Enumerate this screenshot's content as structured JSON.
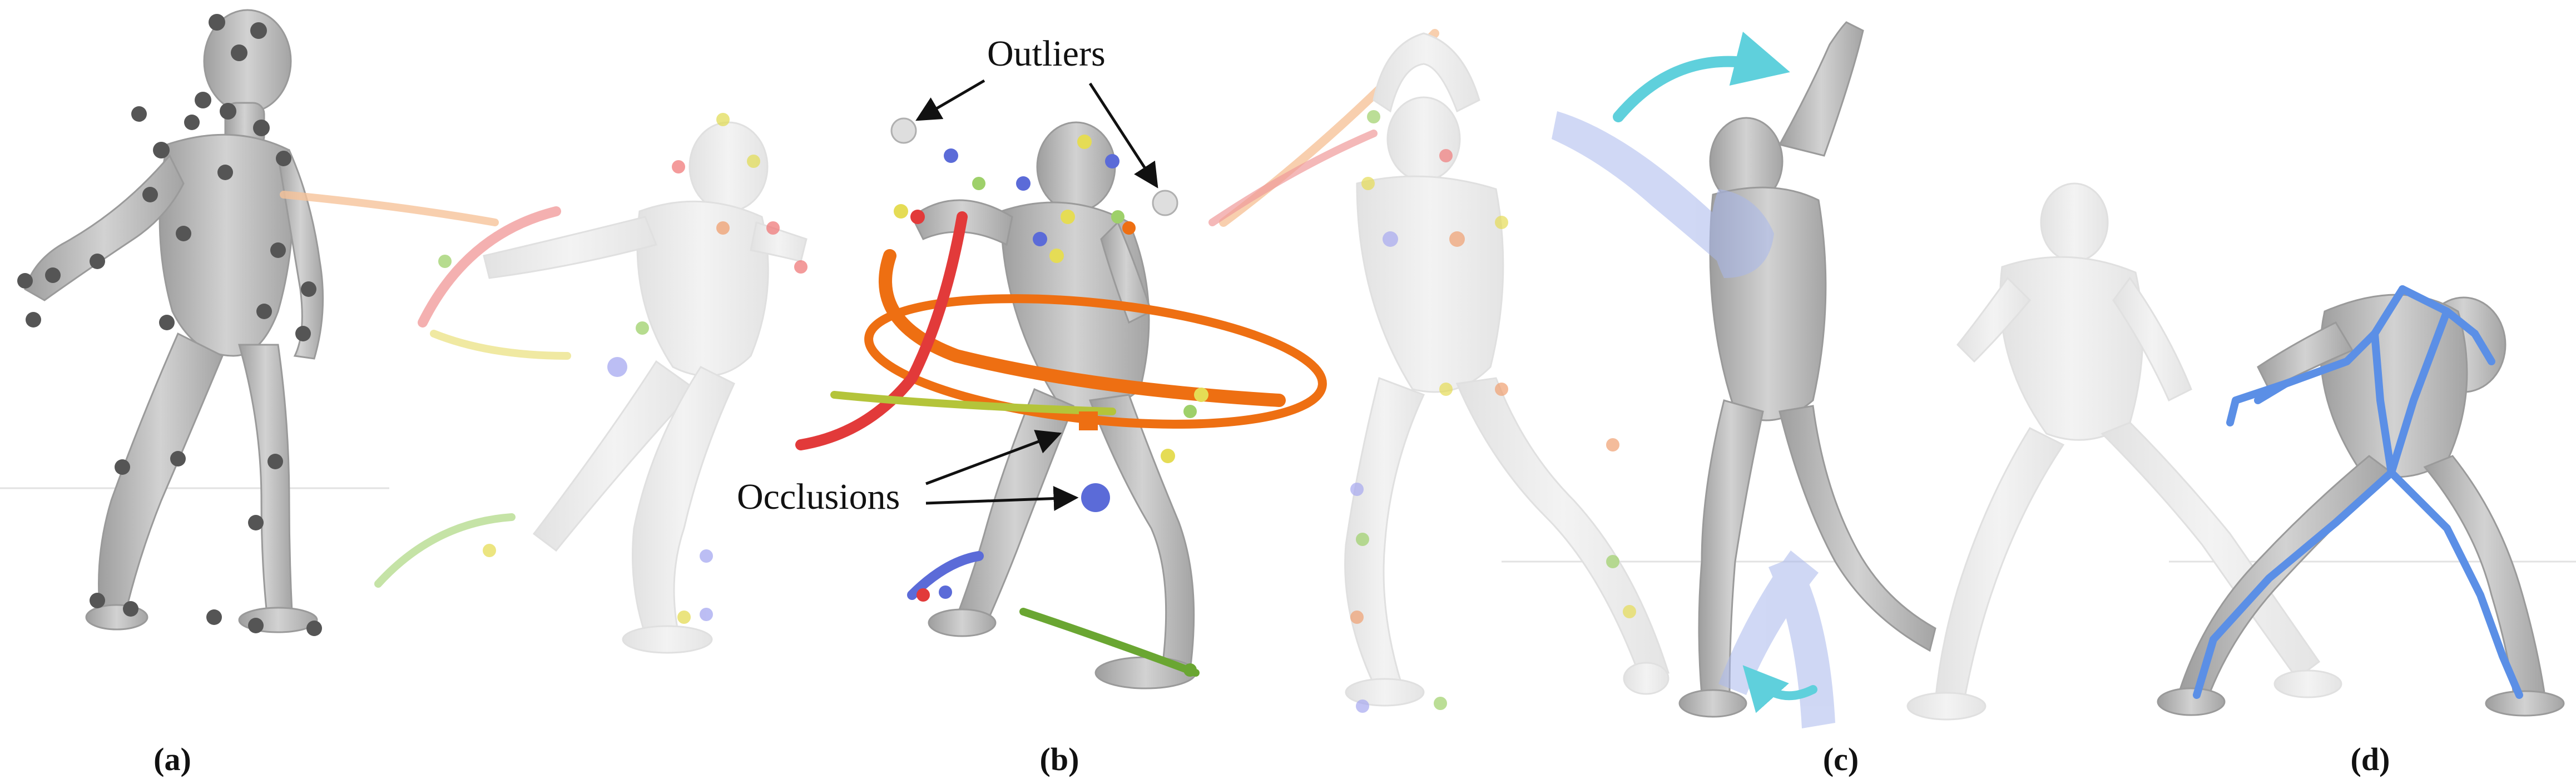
{
  "panels": [
    {
      "caption": "(a)"
    },
    {
      "caption": "(b)"
    },
    {
      "caption": "(c)"
    },
    {
      "caption": "(d)"
    }
  ],
  "annotations": {
    "outliers": "Outliers",
    "occlusions": "Occlusions"
  },
  "colors": {
    "body": "#bdbdbd",
    "body_light": "#ebebeb",
    "marker_dark": "#4f4f4f",
    "trail_orange": "#f07a1e",
    "trail_red": "#e23a3a",
    "trail_green": "#8cc63f",
    "trail_yellow": "#e5dc55",
    "trail_blue": "#5b6bd8",
    "arrow_cyan": "#5fd0dc",
    "overlay_blue": "#a9b8ec",
    "skeleton_blue": "#5b8fe6"
  }
}
